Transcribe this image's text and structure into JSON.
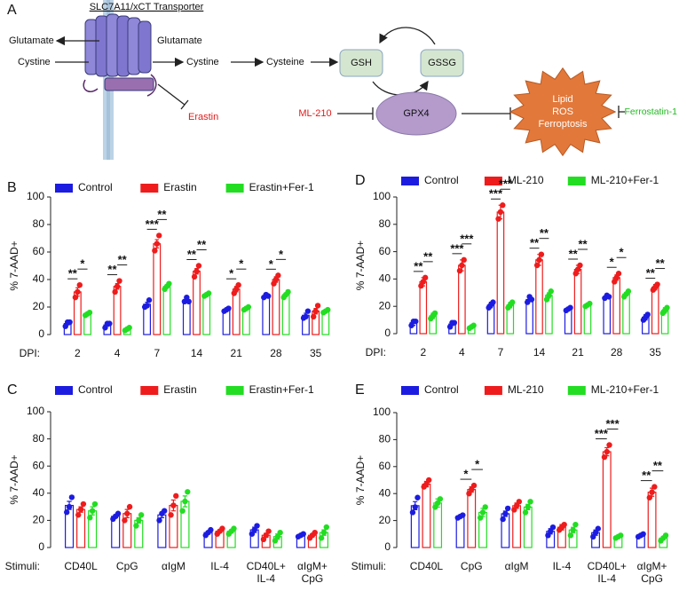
{
  "diagram": {
    "panel": "A",
    "transporter": "SLC7A11/xCT Transporter",
    "glutamate_out": "Glutamate",
    "glutamate_in": "Glutamate",
    "cystine_out": "Cystine",
    "cystine_in": "Cystine",
    "cysteine": "Cysteine",
    "gsh": "GSH",
    "gssg": "GSSG",
    "gpx4": "GPX4",
    "erastin": "Erastin",
    "ml210": "ML-210",
    "ferroptosis": [
      "Lipid",
      "ROS",
      "Ferroptosis"
    ],
    "ferrostatin": "Ferrostatin-1"
  },
  "chart_data": [
    {
      "type": "bar",
      "panel": "B",
      "y_label": "% 7-AAD+",
      "x_label": "DPI:",
      "categories": [
        "2",
        "4",
        "7",
        "14",
        "21",
        "28",
        "35"
      ],
      "ylim": [
        0,
        100
      ],
      "yticks": [
        0,
        20,
        40,
        60,
        80,
        100
      ],
      "series": [
        {
          "name": "Control",
          "color": "#1c1ce0",
          "values": [
            8,
            7,
            22,
            25,
            18,
            28,
            14
          ],
          "errors": [
            1,
            1,
            1.5,
            1,
            0.5,
            0.5,
            1.5
          ],
          "points": [
            [
              6,
              9,
              9
            ],
            [
              5,
              8,
              8
            ],
            [
              20,
              21,
              25
            ],
            [
              24,
              27,
              24
            ],
            [
              17,
              18,
              19
            ],
            [
              27,
              29,
              28
            ],
            [
              12,
              13,
              17
            ]
          ]
        },
        {
          "name": "Erastin",
          "color": "#ee1c1c",
          "values": [
            31,
            35,
            66,
            46,
            33,
            40,
            17
          ],
          "errors": [
            3,
            2,
            3,
            2,
            2,
            2,
            2
          ],
          "points": [
            [
              27,
              31,
              36
            ],
            [
              31,
              35,
              39
            ],
            [
              61,
              66,
              72
            ],
            [
              42,
              46,
              50
            ],
            [
              30,
              33,
              36
            ],
            [
              37,
              40,
              43
            ],
            [
              13,
              17,
              21
            ]
          ],
          "significance": [
            "**",
            "**",
            "***",
            "**",
            "*",
            "*",
            null
          ]
        },
        {
          "name": "Erastin+Fer-1",
          "color": "#22dd22",
          "values": [
            15,
            4,
            35,
            29,
            19,
            29,
            17
          ],
          "errors": [
            0.5,
            0.5,
            1,
            0.5,
            0.5,
            1,
            0.5
          ],
          "points": [
            [
              14,
              15,
              16
            ],
            [
              3,
              4,
              5
            ],
            [
              33,
              35,
              37
            ],
            [
              28,
              29,
              30
            ],
            [
              18,
              19,
              20
            ],
            [
              27,
              29,
              31
            ],
            [
              16,
              17,
              18
            ]
          ],
          "significance": [
            "*",
            "**",
            "**",
            "**",
            "*",
            "*",
            null
          ]
        }
      ]
    },
    {
      "type": "bar",
      "panel": "C",
      "y_label": "% 7-AAD+",
      "x_label": "Stimuli:",
      "categories": [
        "CD40L",
        "CpG",
        "αIgM",
        "IL-4",
        "CD40L+\nIL-4",
        "αIgM+\nCpG"
      ],
      "ylim": [
        0,
        100
      ],
      "yticks": [
        0,
        20,
        40,
        60,
        80,
        100
      ],
      "series": [
        {
          "name": "Control",
          "color": "#1c1ce0",
          "values": [
            31,
            23,
            24,
            11,
            13,
            9
          ],
          "errors": [
            3,
            1,
            2,
            1,
            2,
            0.5
          ],
          "points": [
            [
              26,
              30,
              37
            ],
            [
              21,
              23,
              25
            ],
            [
              20,
              25,
              27
            ],
            [
              9,
              11,
              13
            ],
            [
              10,
              13,
              16
            ],
            [
              8,
              9,
              10
            ]
          ]
        },
        {
          "name": "Erastin",
          "color": "#ee1c1c",
          "values": [
            28,
            25,
            31,
            12,
            9,
            9
          ],
          "errors": [
            2,
            3,
            4,
            1,
            1.5,
            1
          ],
          "points": [
            [
              24,
              28,
              32
            ],
            [
              20,
              25,
              30
            ],
            [
              24,
              31,
              38
            ],
            [
              10,
              12,
              14
            ],
            [
              6,
              9,
              12
            ],
            [
              7,
              9,
              11
            ]
          ]
        },
        {
          "name": "Erastin+Fer-1",
          "color": "#22dd22",
          "values": [
            27,
            20,
            34,
            12,
            8,
            11
          ],
          "errors": [
            3,
            2,
            4,
            1,
            2,
            2
          ],
          "points": [
            [
              22,
              27,
              32
            ],
            [
              16,
              20,
              24
            ],
            [
              27,
              34,
              41
            ],
            [
              10,
              12,
              14
            ],
            [
              5,
              8,
              11
            ],
            [
              7,
              11,
              15
            ]
          ]
        }
      ]
    },
    {
      "type": "bar",
      "panel": "D",
      "y_label": "% 7-AAD+",
      "x_label": "DPI:",
      "categories": [
        "2",
        "4",
        "7",
        "14",
        "21",
        "28",
        "35"
      ],
      "ylim": [
        0,
        100
      ],
      "yticks": [
        0,
        20,
        40,
        60,
        80,
        100
      ],
      "series": [
        {
          "name": "Control",
          "color": "#1c1ce0",
          "values": [
            8,
            7,
            21,
            25,
            18,
            27,
            12
          ],
          "errors": [
            2,
            1,
            2,
            1,
            1,
            1,
            2
          ],
          "points": [
            [
              6,
              9,
              9
            ],
            [
              5,
              8,
              8
            ],
            [
              19,
              21,
              23
            ],
            [
              23,
              27,
              25
            ],
            [
              17,
              18,
              19
            ],
            [
              26,
              28,
              27
            ],
            [
              10,
              12,
              14
            ]
          ]
        },
        {
          "name": "ML-210",
          "color": "#ee1c1c",
          "values": [
            38,
            50,
            89,
            54,
            47,
            41,
            34
          ],
          "errors": [
            3,
            4,
            5,
            4,
            3,
            2,
            2
          ],
          "points": [
            [
              35,
              38,
              41
            ],
            [
              46,
              50,
              54
            ],
            [
              84,
              89,
              94
            ],
            [
              50,
              54,
              58
            ],
            [
              44,
              47,
              50
            ],
            [
              38,
              41,
              44
            ],
            [
              32,
              34,
              36
            ]
          ],
          "significance": [
            "**",
            "***",
            "***",
            "**",
            "**",
            "*",
            "**"
          ]
        },
        {
          "name": "ML-210+Fer-1",
          "color": "#22dd22",
          "values": [
            13,
            5,
            21,
            28,
            21,
            29,
            17
          ],
          "errors": [
            2,
            1,
            2,
            2,
            1,
            1,
            2
          ],
          "points": [
            [
              11,
              13,
              15
            ],
            [
              4,
              5,
              6
            ],
            [
              19,
              21,
              23
            ],
            [
              25,
              28,
              31
            ],
            [
              20,
              21,
              22
            ],
            [
              27,
              29,
              31
            ],
            [
              15,
              17,
              19
            ]
          ],
          "significance": [
            "**",
            "***",
            "***",
            "**",
            "**",
            "*",
            "**"
          ]
        }
      ]
    },
    {
      "type": "bar",
      "panel": "E",
      "y_label": "% 7-AAD+",
      "x_label": "Stimuli:",
      "categories": [
        "CD40L",
        "CpG",
        "αIgM",
        "IL-4",
        "CD40L+\nIL-4",
        "αIgM+\nCpG"
      ],
      "ylim": [
        0,
        100
      ],
      "yticks": [
        0,
        20,
        40,
        60,
        80,
        100
      ],
      "series": [
        {
          "name": "Control",
          "color": "#1c1ce0",
          "values": [
            31,
            23,
            25,
            12,
            11,
            9
          ],
          "errors": [
            3,
            0.5,
            2,
            2,
            2,
            0.5
          ],
          "points": [
            [
              26,
              30,
              37
            ],
            [
              22,
              23,
              24
            ],
            [
              21,
              25,
              29
            ],
            [
              9,
              12,
              15
            ],
            [
              8,
              11,
              14
            ],
            [
              8,
              9,
              10
            ]
          ]
        },
        {
          "name": "ML-210",
          "color": "#ee1c1c",
          "values": [
            47,
            43,
            31,
            15,
            71,
            41
          ],
          "errors": [
            2,
            2,
            2,
            2,
            3,
            3
          ],
          "points": [
            [
              45,
              47,
              50
            ],
            [
              40,
              43,
              46
            ],
            [
              28,
              31,
              34
            ],
            [
              13,
              15,
              17
            ],
            [
              67,
              71,
              76
            ],
            [
              37,
              41,
              45
            ]
          ],
          "significance": [
            null,
            "*",
            null,
            null,
            "***",
            "**"
          ]
        },
        {
          "name": "ML-210+Fer-1",
          "color": "#22dd22",
          "values": [
            33,
            26,
            30,
            13,
            8,
            7
          ],
          "errors": [
            3,
            3,
            2,
            2,
            1,
            1
          ],
          "points": [
            [
              30,
              33,
              36
            ],
            [
              22,
              26,
              30
            ],
            [
              26,
              30,
              34
            ],
            [
              9,
              13,
              17
            ],
            [
              7,
              8,
              9
            ],
            [
              5,
              7,
              9
            ]
          ],
          "significance": [
            null,
            "*",
            null,
            null,
            "***",
            "**"
          ]
        }
      ]
    }
  ]
}
